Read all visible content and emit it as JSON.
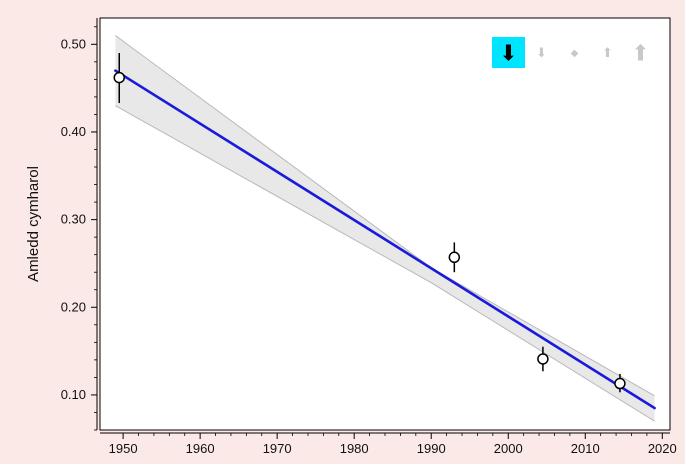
{
  "chart_data": {
    "type": "line",
    "title": "",
    "xlabel": "",
    "ylabel": "Amledd cymharol",
    "xlim": [
      1947,
      2021
    ],
    "ylim": [
      0.06,
      0.53
    ],
    "x_ticks": [
      "1950",
      "1960",
      "1970",
      "1980",
      "1990",
      "2000",
      "2010",
      "2020"
    ],
    "y_ticks": [
      "0.10",
      "0.20",
      "0.30",
      "0.40",
      "0.50"
    ],
    "x_tick_values": [
      1950,
      1960,
      1970,
      1980,
      1990,
      2000,
      2010,
      2020
    ],
    "y_tick_values": [
      0.1,
      0.2,
      0.3,
      0.4,
      0.5
    ],
    "grid": false,
    "legend": "none",
    "fit_line": {
      "x": [
        1949.0,
        2019.0
      ],
      "y": [
        0.47,
        0.085
      ],
      "color": "#1a1adb"
    },
    "confidence_band": {
      "x": [
        1949.0,
        1990.0,
        2019.0
      ],
      "upper": [
        0.51,
        0.245,
        0.099
      ],
      "lower": [
        0.43,
        0.228,
        0.07
      ],
      "fill": "#e8e8e8",
      "stroke": "#b8b8b8"
    },
    "points": [
      {
        "x": 1949.5,
        "y": 0.462,
        "err_low": 0.433,
        "err_high": 0.49
      },
      {
        "x": 1993.0,
        "y": 0.257,
        "err_low": 0.24,
        "err_high": 0.274
      },
      {
        "x": 2004.5,
        "y": 0.141,
        "err_low": 0.127,
        "err_high": 0.155
      },
      {
        "x": 2014.5,
        "y": 0.113,
        "err_low": 0.103,
        "err_high": 0.124
      }
    ]
  },
  "toolbar": {
    "buttons": [
      {
        "icon": "arrow-down-large-icon",
        "glyph": "⬇",
        "active": true
      },
      {
        "icon": "arrow-down-small-icon",
        "glyph": "⬇",
        "active": false
      },
      {
        "icon": "diamond-icon",
        "glyph": "◆",
        "active": false
      },
      {
        "icon": "arrow-up-small-icon",
        "glyph": "⬆",
        "active": false
      },
      {
        "icon": "arrow-up-large-icon",
        "glyph": "⬆",
        "active": false
      }
    ],
    "active_color": "#00e5ff"
  },
  "colors": {
    "background": "#fbe9e7",
    "plot_background": "#ffffff",
    "axis": "#000000"
  }
}
